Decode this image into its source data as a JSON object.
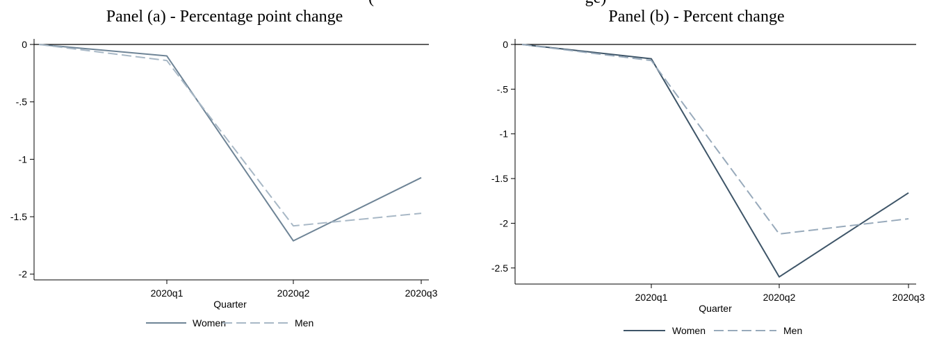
{
  "header_fragments": [
    "(",
    "ge)"
  ],
  "colors": {
    "women_a": "#6e8496",
    "men_a": "#a8b8c6",
    "women_b": "#3e5568",
    "men_b": "#98aabb",
    "axis": "#000000"
  },
  "chart_data": [
    {
      "type": "line",
      "title": "Panel (a) - Percentage point change",
      "xlabel": "Quarter",
      "ylabel": "",
      "x": [
        "",
        "2020q1",
        "2020q2",
        "2020q3"
      ],
      "series": [
        {
          "name": "Women",
          "values": [
            0,
            -0.1,
            -1.71,
            -1.16
          ],
          "style": "solid"
        },
        {
          "name": "Men",
          "values": [
            0,
            -0.14,
            -1.58,
            -1.47
          ],
          "style": "dashed"
        }
      ],
      "ylim": [
        -2.05,
        0.05
      ],
      "yticks": [
        0,
        -0.5,
        -1,
        -1.5,
        -2
      ],
      "ytick_labels": [
        "0",
        "-.5",
        "-1",
        "-1.5",
        "-2"
      ],
      "xtick_labels": [
        "2020q1",
        "2020q2",
        "2020q3"
      ],
      "legend": [
        "Women",
        "Men"
      ],
      "legend_position": "bottom",
      "grid": false
    },
    {
      "type": "line",
      "title": "Panel (b) - Percent change",
      "xlabel": "Quarter",
      "ylabel": "",
      "x": [
        "",
        "2020q1",
        "2020q2",
        "2020q3"
      ],
      "series": [
        {
          "name": "Women",
          "values": [
            0,
            -0.16,
            -2.6,
            -1.66
          ],
          "style": "solid"
        },
        {
          "name": "Men",
          "values": [
            0,
            -0.18,
            -2.12,
            -1.95
          ],
          "style": "dashed"
        }
      ],
      "ylim": [
        -2.68,
        0.05
      ],
      "yticks": [
        0,
        -0.5,
        -1,
        -1.5,
        -2,
        -2.5
      ],
      "ytick_labels": [
        "0",
        "-.5",
        "-1",
        "-1.5",
        "-2",
        "-2.5"
      ],
      "xtick_labels": [
        "2020q1",
        "2020q2",
        "2020q3"
      ],
      "legend": [
        "Women",
        "Men"
      ],
      "legend_position": "bottom",
      "grid": false
    }
  ]
}
